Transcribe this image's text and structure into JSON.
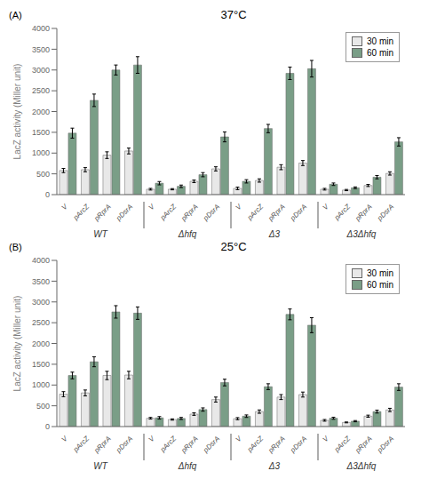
{
  "chart_data": [
    {
      "type": "bar",
      "title": "37°C",
      "annotations": [
        "(A)"
      ],
      "y_label": "LacZ activity (Miller unit)",
      "groups": [
        "WT",
        "Δhfq",
        "Δ3",
        "Δ3Δhfq"
      ],
      "categories": [
        "V",
        "pArcZ",
        "pRprA",
        "pDsrA",
        "V",
        "pArcZ",
        "pRprA",
        "pDsrA",
        "V",
        "pArcZ",
        "pRprA",
        "pDsrA",
        "V",
        "pArcZ",
        "pRprA",
        "pDsrA"
      ],
      "series": [
        {
          "name": "30 min",
          "color": "#e8e8e8",
          "values": [
            580,
            600,
            950,
            1050,
            130,
            130,
            320,
            620,
            150,
            340,
            660,
            760,
            130,
            110,
            220,
            510
          ],
          "errors": [
            50,
            50,
            80,
            70,
            20,
            15,
            30,
            50,
            30,
            40,
            60,
            60,
            20,
            15,
            25,
            40
          ]
        },
        {
          "name": "60 min",
          "color": "#7a9e87",
          "values": [
            1480,
            2270,
            3000,
            3120,
            275,
            200,
            480,
            1390,
            320,
            1590,
            2920,
            3030,
            250,
            165,
            420,
            1270
          ],
          "errors": [
            120,
            150,
            120,
            200,
            40,
            30,
            50,
            120,
            40,
            100,
            150,
            200,
            30,
            20,
            40,
            100
          ]
        }
      ],
      "ylim": [
        0,
        4000
      ],
      "yticks": [
        0,
        500,
        1000,
        1500,
        2000,
        2500,
        3000,
        3500,
        4000
      ],
      "grid": false,
      "legend": "upper right"
    },
    {
      "type": "bar",
      "title": "25°C",
      "annotations": [
        "(B)"
      ],
      "y_label": "LacZ activity (Miller unit)",
      "groups": [
        "WT",
        "Δhfq",
        "Δ3",
        "Δ3Δhfq"
      ],
      "categories": [
        "V",
        "pArcZ",
        "pRprA",
        "pDsrA",
        "V",
        "pArcZ",
        "pRprA",
        "pDsrA",
        "V",
        "pArcZ",
        "pRprA",
        "pDsrA",
        "V",
        "pArcZ",
        "pRprA",
        "pDsrA"
      ],
      "series": [
        {
          "name": "30 min",
          "color": "#e8e8e8",
          "values": [
            780,
            810,
            1230,
            1240,
            200,
            170,
            300,
            650,
            190,
            360,
            710,
            770,
            150,
            100,
            250,
            400
          ],
          "errors": [
            60,
            70,
            100,
            90,
            20,
            15,
            30,
            60,
            25,
            40,
            60,
            60,
            20,
            10,
            25,
            40
          ]
        },
        {
          "name": "60 min",
          "color": "#7a9e87",
          "values": [
            1230,
            1560,
            2760,
            2730,
            210,
            195,
            410,
            1060,
            250,
            960,
            2700,
            2440,
            200,
            130,
            360,
            950
          ],
          "errors": [
            80,
            120,
            150,
            150,
            30,
            25,
            40,
            80,
            30,
            70,
            130,
            180,
            25,
            15,
            35,
            80
          ]
        }
      ],
      "ylim": [
        0,
        4000
      ],
      "yticks": [
        0,
        500,
        1000,
        1500,
        2000,
        2500,
        3000,
        3500,
        4000
      ],
      "grid": false,
      "legend": "upper right"
    }
  ]
}
